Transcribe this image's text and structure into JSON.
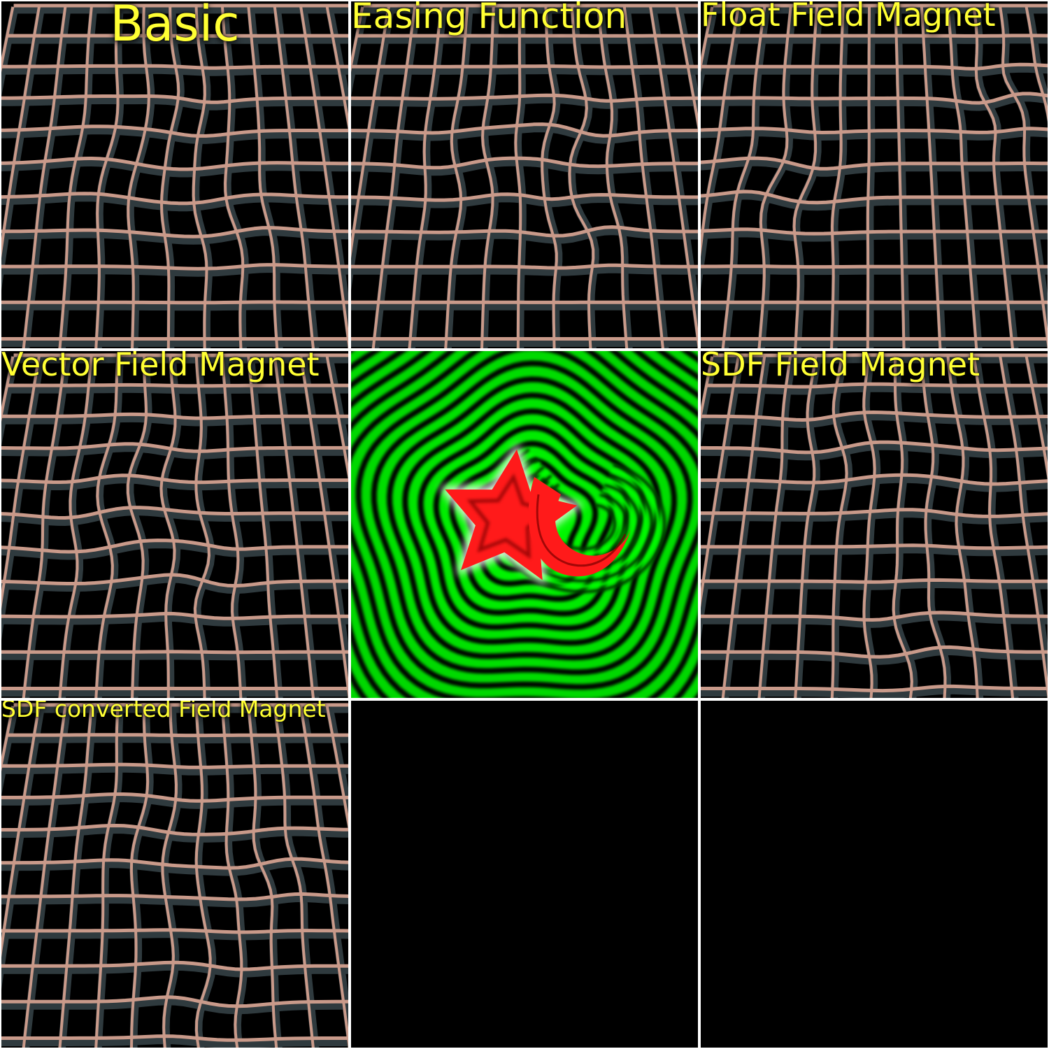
{
  "panels": [
    {
      "id": "basic",
      "title": "Basic"
    },
    {
      "id": "easing",
      "title": "Easing Function"
    },
    {
      "id": "float",
      "title": "Float Field Magnet"
    },
    {
      "id": "vector",
      "title": "Vector Field Magnet"
    },
    {
      "id": "field-visual",
      "title": ""
    },
    {
      "id": "sdf",
      "title": "SDF Field Magnet"
    },
    {
      "id": "sdf-converted",
      "title": "SDF converted Field Magnet"
    },
    {
      "id": "empty1",
      "title": ""
    },
    {
      "id": "empty2",
      "title": ""
    }
  ],
  "colors": {
    "title": "#ffff33",
    "grid_highlight": "#c99a8a",
    "grid_shadow": "#2f3a3e",
    "background": "#000000",
    "field_green": "#00ff00",
    "field_red": "#ff1a1a",
    "separator": "#ffffff"
  }
}
